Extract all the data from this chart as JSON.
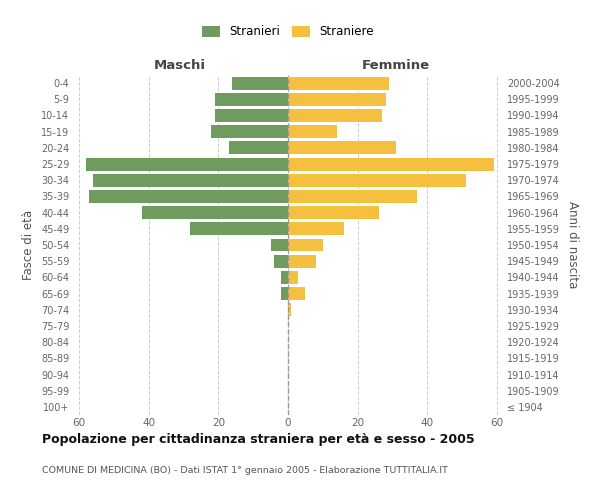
{
  "age_groups": [
    "100+",
    "95-99",
    "90-94",
    "85-89",
    "80-84",
    "75-79",
    "70-74",
    "65-69",
    "60-64",
    "55-59",
    "50-54",
    "45-49",
    "40-44",
    "35-39",
    "30-34",
    "25-29",
    "20-24",
    "15-19",
    "10-14",
    "5-9",
    "0-4"
  ],
  "birth_years": [
    "≤ 1904",
    "1905-1909",
    "1910-1914",
    "1915-1919",
    "1920-1924",
    "1925-1929",
    "1930-1934",
    "1935-1939",
    "1940-1944",
    "1945-1949",
    "1950-1954",
    "1955-1959",
    "1960-1964",
    "1965-1969",
    "1970-1974",
    "1975-1979",
    "1980-1984",
    "1985-1989",
    "1990-1994",
    "1995-1999",
    "2000-2004"
  ],
  "males": [
    0,
    0,
    0,
    0,
    0,
    0,
    0,
    2,
    2,
    4,
    5,
    28,
    42,
    57,
    56,
    58,
    17,
    22,
    21,
    21,
    16
  ],
  "females": [
    0,
    0,
    0,
    0,
    0,
    0,
    1,
    5,
    3,
    8,
    10,
    16,
    26,
    37,
    51,
    59,
    31,
    14,
    27,
    28,
    29
  ],
  "male_color": "#6f9b5e",
  "female_color": "#f5c040",
  "title": "Popolazione per cittadinanza straniera per età e sesso - 2005",
  "subtitle": "COMUNE DI MEDICINA (BO) - Dati ISTAT 1° gennaio 2005 - Elaborazione TUTTITALIA.IT",
  "xlabel_left": "Maschi",
  "xlabel_right": "Femmine",
  "ylabel_left": "Fasce di età",
  "ylabel_right": "Anni di nascita",
  "legend_males": "Stranieri",
  "legend_females": "Straniere",
  "xlim": 62,
  "background_color": "#ffffff",
  "grid_color": "#cccccc",
  "bar_height": 0.8,
  "center_line_color": "#999999"
}
